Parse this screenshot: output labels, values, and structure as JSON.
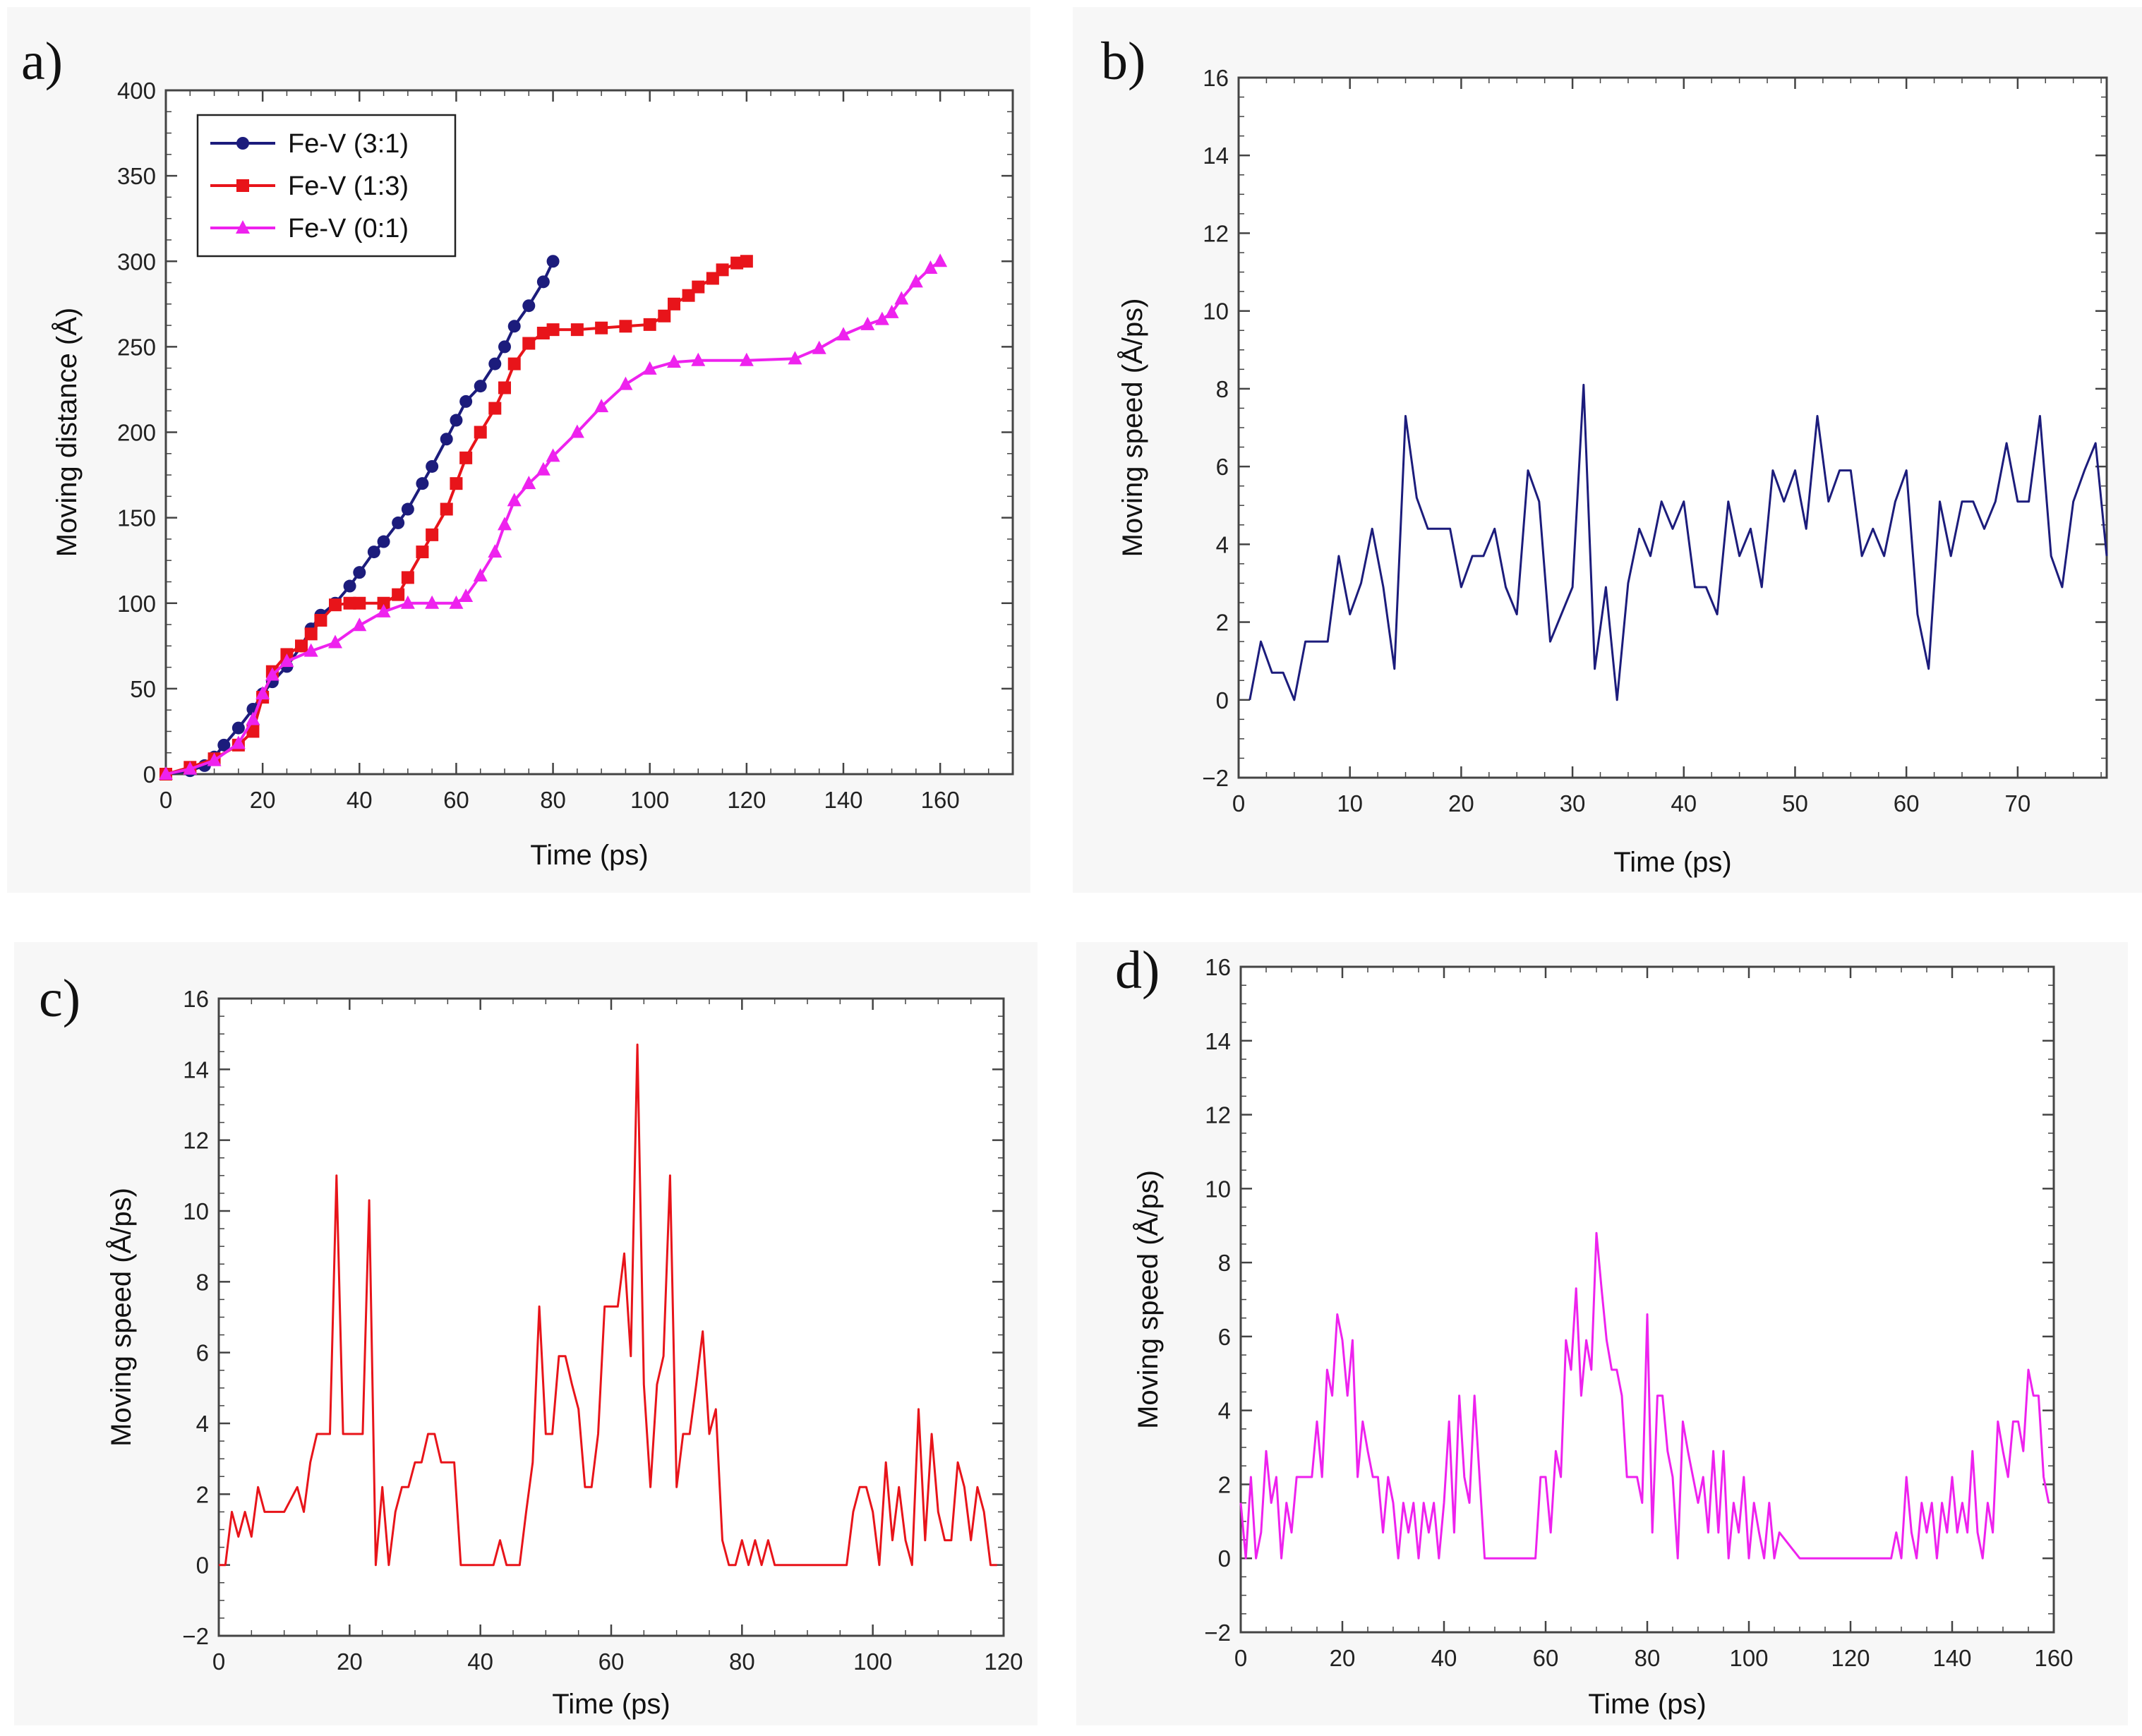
{
  "chart_data": [
    {
      "panel_label": "a)",
      "type": "line",
      "xlabel": "Time (ps)",
      "ylabel": "Moving distance (Å)",
      "xlim": [
        0,
        175
      ],
      "ylim": [
        0,
        400
      ],
      "xticks": [
        0,
        20,
        40,
        60,
        80,
        100,
        120,
        140,
        160
      ],
      "yticks": [
        0,
        50,
        100,
        150,
        200,
        250,
        300,
        350,
        400
      ],
      "legend_position": "top-left",
      "series": [
        {
          "name": "Fe-V (3:1)",
          "color": "#1c1c7c",
          "marker": "circle",
          "x": [
            0,
            5,
            8,
            10,
            12,
            15,
            18,
            20,
            22,
            25,
            28,
            30,
            32,
            35,
            38,
            40,
            43,
            45,
            48,
            50,
            53,
            55,
            58,
            60,
            62,
            65,
            68,
            70,
            72,
            75,
            78,
            80
          ],
          "y": [
            0,
            2,
            5,
            10,
            17,
            27,
            38,
            47,
            54,
            63,
            75,
            85,
            93,
            100,
            110,
            118,
            130,
            136,
            147,
            155,
            170,
            180,
            196,
            207,
            218,
            227,
            240,
            250,
            262,
            274,
            288,
            300
          ]
        },
        {
          "name": "Fe-V (1:3)",
          "color": "#e8141a",
          "marker": "square",
          "x": [
            0,
            5,
            10,
            15,
            18,
            20,
            22,
            25,
            28,
            30,
            32,
            35,
            38,
            40,
            45,
            48,
            50,
            53,
            55,
            58,
            60,
            62,
            65,
            68,
            70,
            72,
            75,
            78,
            80,
            85,
            90,
            95,
            100,
            103,
            105,
            108,
            110,
            113,
            115,
            118,
            120
          ],
          "y": [
            0,
            4,
            9,
            17,
            25,
            45,
            60,
            70,
            75,
            82,
            90,
            99,
            100,
            100,
            100,
            105,
            115,
            130,
            140,
            155,
            170,
            185,
            200,
            214,
            226,
            240,
            252,
            258,
            260,
            260,
            261,
            262,
            263,
            268,
            275,
            280,
            285,
            290,
            295,
            299,
            300
          ]
        },
        {
          "name": "Fe-V (0:1)",
          "color": "#ee22ee",
          "marker": "triangle",
          "x": [
            0,
            5,
            10,
            15,
            18,
            20,
            22,
            25,
            30,
            35,
            40,
            45,
            50,
            55,
            60,
            62,
            65,
            68,
            70,
            72,
            75,
            78,
            80,
            85,
            90,
            95,
            100,
            105,
            110,
            120,
            130,
            135,
            140,
            145,
            148,
            150,
            152,
            155,
            158,
            160
          ],
          "y": [
            0,
            3,
            8,
            18,
            32,
            47,
            58,
            66,
            72,
            77,
            87,
            95,
            100,
            100,
            100,
            104,
            116,
            130,
            146,
            160,
            170,
            178,
            186,
            200,
            215,
            228,
            237,
            241,
            242,
            242,
            243,
            249,
            257,
            263,
            266,
            270,
            278,
            288,
            296,
            300
          ]
        }
      ]
    },
    {
      "panel_label": "b)",
      "type": "line",
      "xlabel": "Time (ps)",
      "ylabel": "Moving speed (Å/ps)",
      "xlim": [
        0,
        78
      ],
      "ylim": [
        -2,
        16
      ],
      "xticks": [
        0,
        10,
        20,
        30,
        40,
        50,
        60,
        70
      ],
      "yticks": [
        -2,
        0,
        2,
        4,
        6,
        8,
        10,
        12,
        14,
        16
      ],
      "series": [
        {
          "name": "Fe-V (3:1)",
          "color": "#1c1c7c",
          "x": [
            1,
            2,
            3,
            4,
            5,
            6,
            7,
            8,
            9,
            10,
            11,
            12,
            13,
            14,
            15,
            16,
            17,
            18,
            19,
            20,
            21,
            22,
            23,
            24,
            25,
            26,
            27,
            28,
            29,
            30,
            31,
            32,
            33,
            34,
            35,
            36,
            37,
            38,
            39,
            40,
            41,
            42,
            43,
            44,
            45,
            46,
            47,
            48,
            49,
            50,
            51,
            52,
            53,
            54,
            55,
            56,
            57,
            58,
            59,
            60,
            61,
            62,
            63,
            64,
            65,
            66,
            67,
            68,
            69,
            70,
            71,
            72,
            73,
            74,
            75,
            76,
            77,
            78
          ],
          "y": [
            0,
            1.5,
            0.7,
            0.7,
            0,
            1.5,
            1.5,
            1.5,
            3.7,
            2.2,
            3,
            4.4,
            2.9,
            0.8,
            7.3,
            5.2,
            4.4,
            4.4,
            4.4,
            2.9,
            3.7,
            3.7,
            4.4,
            2.9,
            2.2,
            5.9,
            5.1,
            1.5,
            2.2,
            2.9,
            8.1,
            0.8,
            2.9,
            0,
            3,
            4.4,
            3.7,
            5.1,
            4.4,
            5.1,
            2.9,
            2.9,
            2.2,
            5.1,
            3.7,
            4.4,
            2.9,
            5.9,
            5.1,
            5.9,
            4.4,
            7.3,
            5.1,
            5.9,
            5.9,
            3.7,
            4.4,
            3.7,
            5.1,
            5.9,
            2.2,
            0.8,
            5.1,
            3.7,
            5.1,
            5.1,
            4.4,
            5.1,
            6.6,
            5.1,
            5.1,
            7.3,
            3.7,
            2.9,
            5.1,
            5.9,
            6.6,
            3.7
          ]
        }
      ]
    },
    {
      "panel_label": "c)",
      "type": "line",
      "xlabel": "Time (ps)",
      "ylabel": "Moving speed (Å/ps)",
      "xlim": [
        0,
        120
      ],
      "ylim": [
        -2,
        16
      ],
      "xticks": [
        0,
        20,
        40,
        60,
        80,
        100,
        120
      ],
      "yticks": [
        -2,
        0,
        2,
        4,
        6,
        8,
        10,
        12,
        14,
        16
      ],
      "series": [
        {
          "name": "Fe-V (1:3)",
          "color": "#e8141a",
          "x": [
            0,
            1,
            2,
            3,
            4,
            5,
            6,
            7,
            8,
            10,
            12,
            13,
            14,
            15,
            16,
            17,
            18,
            19,
            20,
            21,
            22,
            23,
            24,
            25,
            26,
            27,
            28,
            29,
            30,
            31,
            32,
            33,
            34,
            35,
            36,
            37,
            38,
            40,
            42,
            43,
            44,
            45,
            46,
            47,
            48,
            49,
            50,
            51,
            52,
            53,
            54,
            55,
            56,
            57,
            58,
            59,
            60,
            61,
            62,
            63,
            64,
            65,
            66,
            67,
            68,
            69,
            70,
            71,
            72,
            73,
            74,
            75,
            76,
            77,
            78,
            79,
            80,
            81,
            82,
            83,
            84,
            85,
            86,
            90,
            94,
            96,
            97,
            98,
            99,
            100,
            101,
            102,
            103,
            104,
            105,
            106,
            107,
            108,
            109,
            110,
            111,
            112,
            113,
            114,
            115,
            116,
            117,
            118,
            119
          ],
          "y": [
            0,
            0,
            1.5,
            0.8,
            1.5,
            0.8,
            2.2,
            1.5,
            1.5,
            1.5,
            2.2,
            1.5,
            2.9,
            3.7,
            3.7,
            3.7,
            11,
            3.7,
            3.7,
            3.7,
            3.7,
            10.3,
            0,
            2.2,
            0,
            1.5,
            2.2,
            2.2,
            2.9,
            2.9,
            3.7,
            3.7,
            2.9,
            2.9,
            2.9,
            0,
            0,
            0,
            0,
            0.7,
            0,
            0,
            0,
            1.5,
            2.9,
            7.3,
            3.7,
            3.7,
            5.9,
            5.9,
            5.1,
            4.4,
            2.2,
            2.2,
            3.7,
            7.3,
            7.3,
            7.3,
            8.8,
            5.9,
            14.7,
            5.1,
            2.2,
            5.1,
            5.9,
            11,
            2.2,
            3.7,
            3.7,
            5.1,
            6.6,
            3.7,
            4.4,
            0.7,
            0,
            0,
            0.7,
            0,
            0.7,
            0,
            0.7,
            0,
            0,
            0,
            0,
            0,
            1.5,
            2.2,
            2.2,
            1.5,
            0,
            2.9,
            0.7,
            2.2,
            0.7,
            0,
            4.4,
            0.7,
            3.7,
            1.5,
            0.7,
            0.7,
            2.9,
            2.2,
            0.7,
            2.2,
            1.5,
            0,
            0
          ]
        }
      ]
    },
    {
      "panel_label": "d)",
      "type": "line",
      "xlabel": "Time (ps)",
      "ylabel": "Moving speed (Å/ps)",
      "xlim": [
        0,
        160
      ],
      "ylim": [
        -2,
        16
      ],
      "xticks": [
        0,
        20,
        40,
        60,
        80,
        100,
        120,
        140,
        160
      ],
      "yticks": [
        -2,
        0,
        2,
        4,
        6,
        8,
        10,
        12,
        14,
        16
      ],
      "series": [
        {
          "name": "Fe-V (0:1)",
          "color": "#ee22ee",
          "x": [
            0,
            1,
            2,
            3,
            4,
            5,
            6,
            7,
            8,
            9,
            10,
            11,
            12,
            13,
            14,
            15,
            16,
            17,
            18,
            19,
            20,
            21,
            22,
            23,
            24,
            25,
            26,
            27,
            28,
            29,
            30,
            31,
            32,
            33,
            34,
            35,
            36,
            37,
            38,
            39,
            40,
            41,
            42,
            43,
            44,
            45,
            46,
            47,
            48,
            52,
            56,
            58,
            59,
            60,
            61,
            62,
            63,
            64,
            65,
            66,
            67,
            68,
            69,
            70,
            71,
            72,
            73,
            74,
            75,
            76,
            77,
            78,
            79,
            80,
            81,
            82,
            83,
            84,
            85,
            86,
            87,
            88,
            89,
            90,
            91,
            92,
            93,
            94,
            95,
            96,
            97,
            98,
            99,
            100,
            101,
            102,
            103,
            104,
            105,
            106,
            110,
            115,
            120,
            125,
            128,
            129,
            130,
            131,
            132,
            133,
            134,
            135,
            136,
            137,
            138,
            139,
            140,
            141,
            142,
            143,
            144,
            145,
            146,
            147,
            148,
            149,
            150,
            151,
            152,
            153,
            154,
            155,
            156,
            157,
            158,
            159
          ],
          "y": [
            1.5,
            0,
            2.2,
            0,
            0.7,
            2.9,
            1.5,
            2.2,
            0,
            1.5,
            0.7,
            2.2,
            2.2,
            2.2,
            2.2,
            3.7,
            2.2,
            5.1,
            4.4,
            6.6,
            5.9,
            4.4,
            5.9,
            2.2,
            3.7,
            2.9,
            2.2,
            2.2,
            0.7,
            2.2,
            1.5,
            0,
            1.5,
            0.7,
            1.5,
            0,
            1.5,
            0.7,
            1.5,
            0,
            1.5,
            3.7,
            0.7,
            4.4,
            2.2,
            1.5,
            4.4,
            2.2,
            0,
            0,
            0,
            0,
            2.2,
            2.2,
            0.7,
            2.9,
            2.2,
            5.9,
            5.1,
            7.3,
            4.4,
            5.9,
            5.1,
            8.8,
            7.3,
            5.9,
            5.1,
            5.1,
            4.4,
            2.2,
            2.2,
            2.2,
            1.5,
            6.6,
            0.7,
            4.4,
            4.4,
            2.9,
            2.2,
            0,
            3.7,
            2.9,
            2.2,
            1.5,
            2.2,
            0.7,
            2.9,
            0.7,
            2.9,
            0,
            1.5,
            0.7,
            2.2,
            0,
            1.5,
            0.7,
            0,
            1.5,
            0,
            0.7,
            0,
            0,
            0,
            0,
            0,
            0.7,
            0,
            2.2,
            0.7,
            0,
            1.5,
            0.7,
            1.5,
            0,
            1.5,
            0.7,
            2.2,
            0.7,
            1.5,
            0.7,
            2.9,
            0.7,
            0,
            1.5,
            0.7,
            3.7,
            2.9,
            2.2,
            3.7,
            3.7,
            2.9,
            5.1,
            4.4,
            4.4,
            2.2,
            1.5
          ]
        }
      ]
    }
  ]
}
